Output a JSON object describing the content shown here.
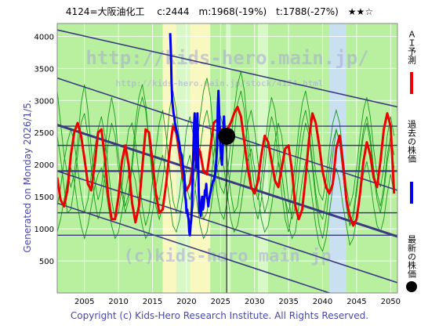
{
  "header": {
    "title": "4124=大阪油化工　 c:2444　m:1968(-19%)　t:1788(-27%)　★★☆"
  },
  "side_label": "Generated on Monday 2026/1/5.",
  "footer": "Copyright (c) Kids-Hero Research Institute. All Rights Reserved.",
  "watermark": {
    "top_line": "http://kids-hero.main.jp/",
    "top_sub": "http://kids-hero.main.jp/stock/4124.html",
    "bottom_line": "(c)kids-hero main jp"
  },
  "legend": [
    {
      "label": "ＡＩ予測",
      "color": "#ee0000"
    },
    {
      "label": "過去の株価",
      "color": "#0000ee"
    },
    {
      "label": "最新の株価",
      "color": "#000000"
    }
  ],
  "colors": {
    "band_green": "#b8f0a0",
    "band_pale_green": "#d8f8c8",
    "band_yellow": "#f8f8c0",
    "band_blue": "#c8e0f0",
    "green_series": "#1a9a1a",
    "trend_line": "#3a3a80",
    "grid": "#3a3a80"
  },
  "chart_data": {
    "type": "line",
    "title": "4124=大阪油化工　 c:2444　m:1968(-19%)　t:1788(-27%)　★★☆",
    "xlabel": "",
    "ylabel": "",
    "xlim": [
      2001,
      2051
    ],
    "ylim": [
      0,
      4200
    ],
    "x_ticks": [
      2005,
      2010,
      2015,
      2020,
      2025,
      2030,
      2035,
      2040,
      2045,
      2050
    ],
    "y_ticks": [
      500,
      1000,
      1500,
      2000,
      2500,
      3000,
      3500,
      4000
    ],
    "grid": true,
    "latest_point": {
      "x": 2025.9,
      "y": 2444
    },
    "latest_vline_x": 2025.9,
    "horizontal_lines": [
      900,
      1250,
      1900,
      2300,
      2600
    ],
    "trend_lines": [
      {
        "x": [
          2001,
          2051
        ],
        "y": [
          4100,
          2900
        ]
      },
      {
        "x": [
          2001,
          2051
        ],
        "y": [
          3350,
          1600
        ]
      },
      {
        "x": [
          2001,
          2051
        ],
        "y": [
          2620,
          880
        ]
      },
      {
        "x": [
          2001,
          2051
        ],
        "y": [
          1900,
          160
        ]
      },
      {
        "x": [
          2001,
          2051
        ],
        "y": [
          1400,
          -350
        ]
      }
    ],
    "background_bands": [
      {
        "from": 2001,
        "to": 2016.5,
        "color": "band_green"
      },
      {
        "from": 2016.5,
        "to": 2018.5,
        "color": "band_yellow"
      },
      {
        "from": 2018.5,
        "to": 2020.5,
        "color": "band_pale_green"
      },
      {
        "from": 2020.5,
        "to": 2023.5,
        "color": "band_yellow"
      },
      {
        "from": 2023.5,
        "to": 2025.8,
        "color": "band_green"
      },
      {
        "from": 2025.8,
        "to": 2026.5,
        "color": "band_pale_green"
      },
      {
        "from": 2026.5,
        "to": 2030.5,
        "color": "band_green"
      },
      {
        "from": 2030.5,
        "to": 2032,
        "color": "band_pale_green"
      },
      {
        "from": 2032,
        "to": 2041,
        "color": "band_green"
      },
      {
        "from": 2041,
        "to": 2043.5,
        "color": "band_blue"
      },
      {
        "from": 2043.5,
        "to": 2051,
        "color": "band_green"
      }
    ],
    "series": [
      {
        "name": "ＡＩ予測",
        "color": "#ee0000",
        "x": [
          2001,
          2001.5,
          2002,
          2002.5,
          2003,
          2003.5,
          2004,
          2004.5,
          2005,
          2005.5,
          2006,
          2006.5,
          2007,
          2007.5,
          2008,
          2008.5,
          2009,
          2009.5,
          2010,
          2010.5,
          2011,
          2011.5,
          2012,
          2012.5,
          2013,
          2013.5,
          2014,
          2014.5,
          2015,
          2015.5,
          2016,
          2016.5,
          2017,
          2017.5,
          2018,
          2018.5,
          2019,
          2019.5,
          2020,
          2020.5,
          2021,
          2021.5,
          2022,
          2022.5,
          2023,
          2023.5,
          2024,
          2024.5,
          2025,
          2025.5,
          2026,
          2026.5,
          2027,
          2027.5,
          2028,
          2028.5,
          2029,
          2029.5,
          2030,
          2030.5,
          2031,
          2031.5,
          2032,
          2032.5,
          2033,
          2033.5,
          2034,
          2034.5,
          2035,
          2035.5,
          2036,
          2036.5,
          2037,
          2037.5,
          2038,
          2038.5,
          2039,
          2039.5,
          2040,
          2040.5,
          2041,
          2041.5,
          2042,
          2042.5,
          2043,
          2043.5,
          2044,
          2044.5,
          2045,
          2045.5,
          2046,
          2046.5,
          2047,
          2047.5,
          2048,
          2048.5,
          2049,
          2049.5,
          2050,
          2050.5
        ],
        "y": [
          1800,
          1450,
          1350,
          1600,
          2150,
          2500,
          2650,
          2450,
          2100,
          1700,
          1600,
          2000,
          2500,
          2550,
          2100,
          1500,
          1150,
          1150,
          1500,
          2050,
          2300,
          2000,
          1400,
          1100,
          1350,
          1950,
          2550,
          2500,
          2050,
          1550,
          1250,
          1300,
          1700,
          2200,
          2600,
          2500,
          2150,
          1800,
          1600,
          1700,
          2050,
          2300,
          2200,
          1900,
          1850,
          2250,
          2650,
          2700,
          2550,
          2500,
          2550,
          2650,
          2800,
          2900,
          2750,
          2350,
          1950,
          1650,
          1550,
          1750,
          2150,
          2450,
          2350,
          2050,
          1750,
          1650,
          1950,
          2250,
          2300,
          1900,
          1350,
          1150,
          1300,
          1800,
          2400,
          2800,
          2650,
          2300,
          1900,
          1650,
          1550,
          1700,
          2250,
          2450,
          2000,
          1450,
          1200,
          1050,
          1150,
          1550,
          2050,
          2350,
          2150,
          1800,
          1650,
          2050,
          2550,
          2800,
          2600,
          1550
        ]
      },
      {
        "name": "過去の株価",
        "color": "#0000ee",
        "x": [
          2017.6,
          2017.7,
          2017.8,
          2017.9,
          2018.0,
          2018.1,
          2018.2,
          2018.3,
          2018.5,
          2018.7,
          2018.9,
          2019.1,
          2019.3,
          2019.5,
          2019.7,
          2019.8,
          2019.9,
          2020.0,
          2020.1,
          2020.2,
          2020.3,
          2020.4,
          2020.5,
          2020.6,
          2020.7,
          2020.8,
          2020.9,
          2021.0,
          2021.1,
          2021.2,
          2021.3,
          2021.4,
          2021.5,
          2021.6,
          2021.7,
          2021.8,
          2021.9,
          2022.0,
          2022.1,
          2022.2,
          2022.3,
          2022.4,
          2022.5,
          2022.6,
          2022.7,
          2022.8,
          2022.9,
          2023.0,
          2023.1,
          2023.2,
          2023.3,
          2023.4,
          2023.5,
          2023.6,
          2023.7,
          2023.8,
          2023.9,
          2024.0,
          2024.1,
          2024.2,
          2024.3,
          2024.4,
          2024.5,
          2024.6,
          2024.7,
          2024.8,
          2024.9,
          2025.0,
          2025.1,
          2025.2,
          2025.3,
          2025.4,
          2025.5,
          2025.6,
          2025.7,
          2025.8,
          2025.9
        ],
        "y": [
          4050,
          3750,
          3300,
          3000,
          2900,
          2800,
          2750,
          2650,
          2550,
          2450,
          2350,
          2200,
          2150,
          1950,
          1800,
          1500,
          1450,
          1250,
          1300,
          1200,
          1150,
          950,
          900,
          1050,
          1150,
          1350,
          1750,
          2200,
          2600,
          2800,
          2450,
          1950,
          2400,
          2800,
          2150,
          1600,
          1250,
          1300,
          1200,
          1400,
          1500,
          1300,
          1350,
          1450,
          1600,
          1550,
          1700,
          1500,
          1450,
          1350,
          1450,
          1500,
          1550,
          1600,
          1650,
          1700,
          1750,
          1750,
          1800,
          1850,
          1950,
          2100,
          2300,
          2900,
          3150,
          2800,
          2450,
          2250,
          2100,
          2000,
          2200,
          2500,
          2750,
          2550,
          2400,
          2450,
          2444
        ]
      }
    ],
    "green_series": [
      {
        "y": [
          2450,
          2100,
          1650,
          1250,
          1300,
          1650,
          2150,
          2650,
          2800,
          2450,
          1950,
          1450,
          1150,
          1350,
          1850,
          2350,
          2650,
          2450,
          1950,
          1550,
          1250,
          1450,
          1950,
          2450,
          2850,
          3050,
          2850,
          2350,
          1750,
          1350,
          1150,
          1350,
          1750,
          2250,
          2650,
          2450,
          2050,
          1650,
          1250,
          1050,
          1350,
          1850,
          2250,
          2650,
          2850,
          2550,
          2050,
          1550,
          1250,
          1150,
          1450,
          1950,
          2450,
          2950,
          3150,
          2850,
          2250,
          1750,
          1350,
          1150,
          1450,
          1950,
          2450,
          2750,
          2550,
          2050,
          1550,
          1150,
          950,
          1250,
          1750,
          2250,
          2650,
          2850,
          2550,
          2050,
          1550,
          1250,
          1150,
          1450,
          1950,
          2350,
          2550,
          2350,
          1850,
          1350,
          1050,
          1250,
          1650,
          2150,
          2550,
          2750,
          2450,
          1950,
          1550,
          1350,
          1650,
          2150,
          2450,
          2150
        ]
      },
      {
        "y": [
          1350,
          1650,
          2050,
          2350,
          2550,
          2350,
          1950,
          1550,
          1250,
          1450,
          1850,
          2250,
          2550,
          2750,
          2450,
          1950,
          1450,
          1150,
          1250,
          1650,
          2150,
          2550,
          2650,
          2350,
          1850,
          1350,
          1050,
          1250,
          1750,
          2250,
          2650,
          2850,
          2450,
          1950,
          1450,
          1250,
          1550,
          2050,
          2550,
          2750,
          2450,
          1950,
          1450,
          1150,
          1250,
          1650,
          2150,
          2550,
          2750,
          2550,
          2050,
          1550,
          1250,
          1350,
          1750,
          2250,
          2650,
          2850,
          2550,
          2050,
          1550,
          1250,
          1450,
          1850,
          2350,
          2650,
          2450,
          1950,
          1450,
          1150,
          1350,
          1850,
          2350,
          2650,
          2450,
          1950,
          1450,
          1050,
          850,
          1150,
          1650,
          2150,
          2550,
          2350,
          1850,
          1350,
          1050,
          1150,
          1550,
          2050,
          2450,
          2650,
          2350,
          1850,
          1450,
          1250,
          1550,
          2050,
          2350,
          1950
        ]
      },
      {
        "y": [
          3150,
          2650,
          2150,
          1850,
          1650,
          1850,
          2350,
          2950,
          3250,
          2850,
          2250,
          1750,
          1450,
          1650,
          2150,
          2750,
          3050,
          2750,
          2150,
          1650,
          1350,
          1550,
          2050,
          2650,
          3050,
          3250,
          2950,
          2350,
          1850,
          1550,
          1450,
          1750,
          2250,
          2850,
          3150,
          2850,
          2350,
          1950,
          1650,
          1450,
          1750,
          2250,
          2750,
          3150,
          3350,
          3050,
          2450,
          1950,
          1650,
          1550,
          1850,
          2350,
          2850,
          3250,
          3450,
          3150,
          2550,
          2050,
          1650,
          1450,
          1750,
          2250,
          2750,
          3050,
          2850,
          2350,
          1850,
          1450,
          1250,
          1550,
          2050,
          2550,
          2950,
          3150,
          2850,
          2350,
          1850,
          1550,
          1450,
          1750,
          2250,
          2650,
          2850,
          2650,
          2150,
          1650,
          1350,
          1550,
          1950,
          2450,
          2850,
          3050,
          2750,
          2250,
          1850,
          1650,
          1950,
          2450,
          2750,
          2450
        ]
      },
      {
        "y": [
          950,
          1150,
          1450,
          1750,
          1950,
          1750,
          1350,
          1050,
          850,
          1050,
          1350,
          1650,
          1850,
          1950,
          1750,
          1350,
          1050,
          850,
          950,
          1250,
          1550,
          1850,
          1950,
          1750,
          1350,
          1050,
          850,
          950,
          1250,
          1650,
          1950,
          2150,
          1850,
          1450,
          1050,
          950,
          1150,
          1550,
          1950,
          2150,
          1850,
          1450,
          1050,
          850,
          950,
          1250,
          1650,
          1950,
          2150,
          1950,
          1550,
          1150,
          950,
          1050,
          1350,
          1750,
          2050,
          2250,
          1950,
          1550,
          1150,
          950,
          1050,
          1350,
          1750,
          2050,
          1850,
          1450,
          1050,
          850,
          950,
          1350,
          1750,
          2050,
          1850,
          1450,
          1050,
          750,
          650,
          850,
          1250,
          1650,
          1950,
          1750,
          1350,
          1050,
          750,
          850,
          1150,
          1550,
          1850,
          2050,
          1750,
          1350,
          1050,
          950,
          1150,
          1550,
          1850,
          1550
        ]
      }
    ]
  }
}
